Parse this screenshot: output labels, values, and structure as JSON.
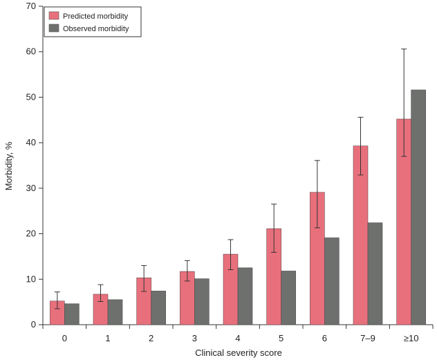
{
  "chart_data": {
    "type": "bar",
    "categories": [
      "0",
      "1",
      "2",
      "3",
      "4",
      "5",
      "6",
      "7–9",
      "≥10"
    ],
    "series": [
      {
        "name": "Predicted morbidity",
        "color": "#e8707c",
        "values": [
          5.2,
          6.7,
          10.3,
          11.7,
          15.5,
          21.1,
          29.1,
          39.3,
          45.2
        ],
        "error_low": [
          3.5,
          5.1,
          7.3,
          9.6,
          12.1,
          15.9,
          21.3,
          32.9,
          37.0
        ],
        "error_high": [
          7.2,
          8.8,
          13.0,
          14.1,
          18.7,
          26.5,
          36.1,
          45.6,
          60.6
        ]
      },
      {
        "name": "Observed morbidity",
        "color": "#6e706e",
        "values": [
          4.6,
          5.5,
          7.4,
          10.1,
          12.5,
          11.8,
          19.1,
          22.4,
          51.6
        ]
      }
    ],
    "xlabel": "Clinical severity score",
    "ylabel": "Morbidity, %",
    "ylim": [
      0,
      70
    ],
    "yticks": [
      0,
      10,
      20,
      30,
      40,
      50,
      60,
      70
    ],
    "grid": false,
    "legend": "top-left"
  }
}
